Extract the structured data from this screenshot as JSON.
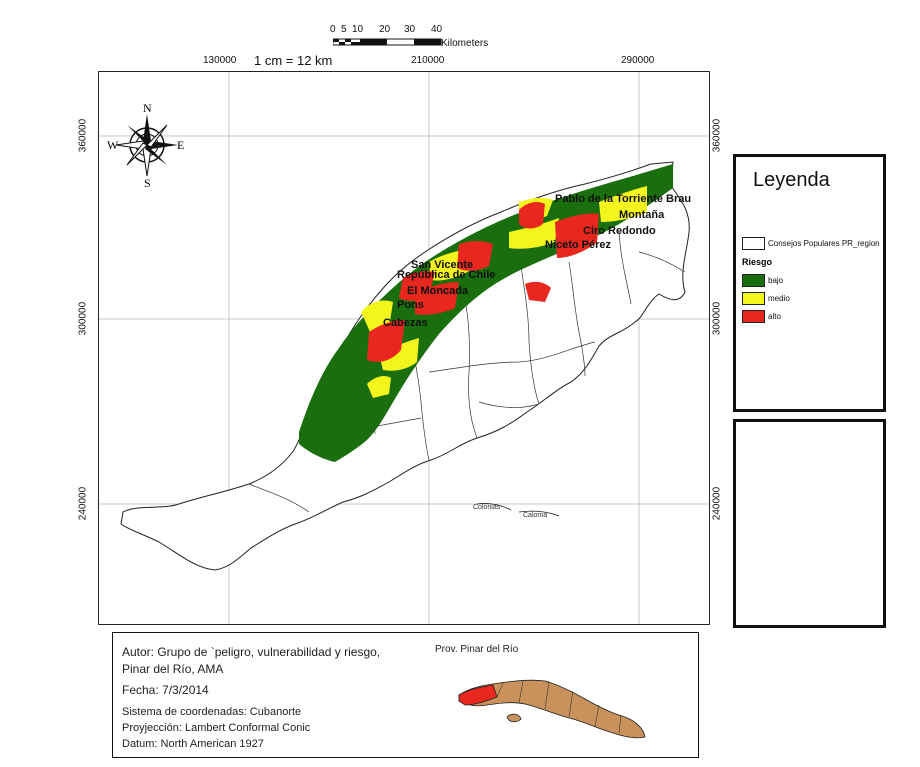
{
  "scale_bar": {
    "ticks": [
      "0",
      "5",
      "10",
      "20",
      "30",
      "40"
    ],
    "unit_label": "Kilometers",
    "ratio_label": "1 cm = 12 km"
  },
  "grid_labels": {
    "top": [
      "130000",
      "210000",
      "290000"
    ],
    "left": [
      "360000",
      "300000",
      "240000"
    ],
    "right": [
      "360000",
      "300000",
      "240000"
    ]
  },
  "compass": {
    "n": "N",
    "s": "S",
    "e": "E",
    "w": "W"
  },
  "map": {
    "place_labels": [
      "Pablo de la Torriente Brau",
      "Montaña",
      "Ciro Redondo",
      "Niceto Pérez",
      "San Vicente",
      "República de Chile",
      "El Moncada",
      "Pons",
      "Cabezas"
    ],
    "minor_labels": [
      "Colonias",
      "Caloma"
    ],
    "colors": {
      "bajo": "#1a6e0e",
      "medio": "#f5f51e",
      "alto": "#e8281e",
      "outline": "#222222"
    }
  },
  "legend": {
    "title": "Leyenda",
    "boundary_label": "Consejos Populares PR_region",
    "group_title": "Riesgo",
    "items": [
      {
        "label": "bajo",
        "color": "#1a6e0e"
      },
      {
        "label": "medio",
        "color": "#f5f51e"
      },
      {
        "label": "alto",
        "color": "#e8281e"
      }
    ]
  },
  "info": {
    "author_line1": "Autor: Grupo de `peligro, vulnerabilidad y riesgo,",
    "author_line2": "Pinar del Río, AMA",
    "date": "Fecha: 7/3/2014",
    "coord_system": "Sistema de coordenadas: Cubanorte",
    "projection": "Proyjección: Lambert Conformal Conic",
    "datum": "Datum: North American 1927",
    "inset_title": "Prov. Pinar del Río"
  }
}
